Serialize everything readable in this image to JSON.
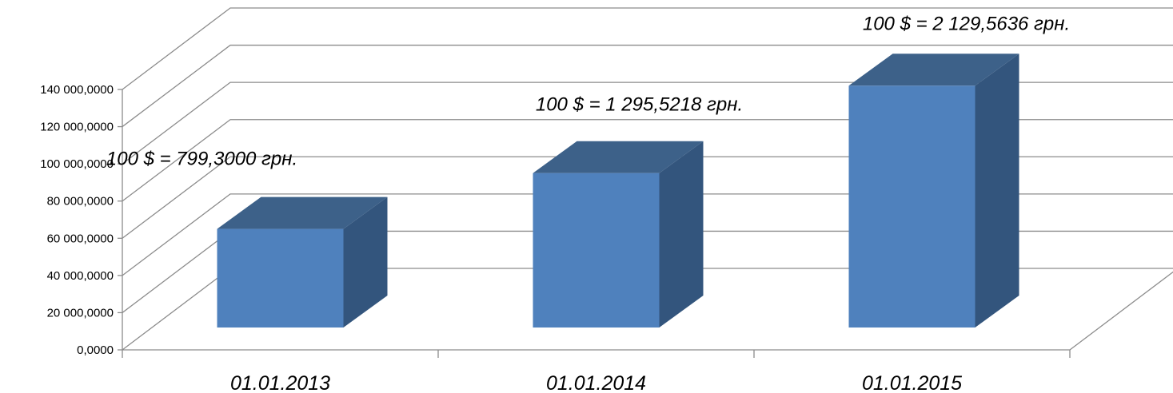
{
  "chart_data": {
    "type": "bar",
    "subtype": "3d-column",
    "title": "",
    "xlabel": "",
    "ylabel": "",
    "categories": [
      "01.01.2013",
      "01.01.2014",
      "01.01.2015"
    ],
    "values": [
      53000000,
      83000000,
      130000000
    ],
    "data_labels": [
      "100 $ = 799,3000 грн.",
      "100 $ = 1 295,5218 грн.",
      "100 $ = 2 129,5636 грн."
    ],
    "ylim": [
      0,
      140000000
    ],
    "ytick_step": 20000000,
    "ytick_labels": [
      "0,0000",
      "20 000,0000",
      "40 000,0000",
      "60 000,0000",
      "80 000,0000",
      "100 000,0000",
      "120 000,0000",
      "140 000,0000"
    ],
    "grid": true,
    "legend": "none",
    "colors": {
      "front": "#4f81bd",
      "top": "#3d6189",
      "side": "#33557d",
      "grid": "#8c8c8c"
    }
  }
}
